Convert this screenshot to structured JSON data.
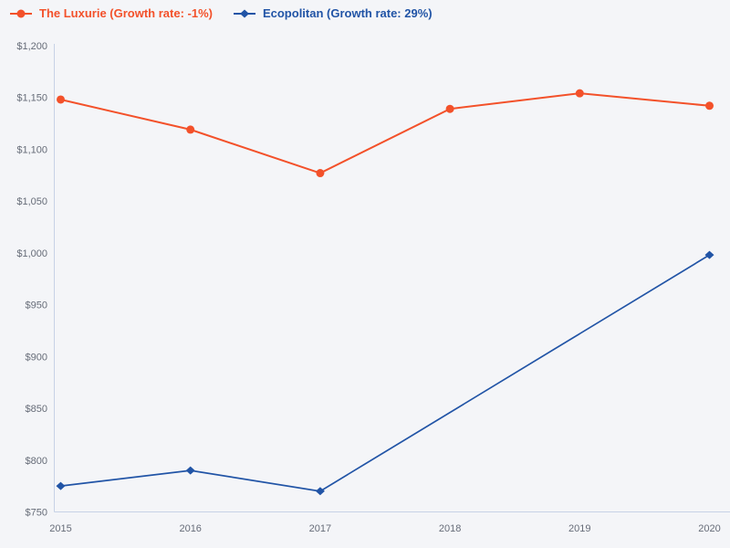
{
  "page": {
    "background": "#f4f5f8"
  },
  "axes": {
    "axis_color": "#c7d2e6",
    "tick_text_color": "#666c78",
    "x_ticks": [
      "2015",
      "2016",
      "2017",
      "2018",
      "2019",
      "2020"
    ],
    "y_ticks": [
      "$750",
      "$800",
      "$850",
      "$900",
      "$950",
      "$1,000",
      "$1,050",
      "$1,100",
      "$1,150",
      "$1,200"
    ]
  },
  "chart_data": {
    "type": "line",
    "x": [
      2015,
      2016,
      2017,
      2018,
      2019,
      2020
    ],
    "series": [
      {
        "name": "The Luxurie (Growth rate: -1%)",
        "color": "#f3512a",
        "marker": "circle",
        "values": [
          1148,
          1119,
          1077,
          1139,
          1154,
          1142
        ]
      },
      {
        "name": "Ecopolitan (Growth rate: 29%)",
        "color": "#2154a6",
        "marker": "diamond",
        "values": [
          775,
          790,
          770,
          null,
          null,
          998
        ]
      }
    ],
    "ylim": [
      750,
      1200
    ],
    "ytick_step": 50,
    "ytick_prefix": "$",
    "grid": false,
    "legend_position": "top-left",
    "gaps_connected": true
  }
}
